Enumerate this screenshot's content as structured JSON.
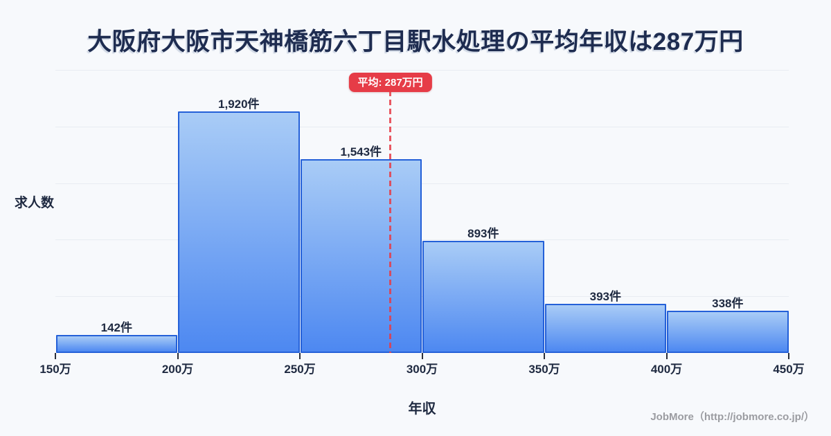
{
  "title": "大阪府大阪市天神橋筋六丁目駅水処理の平均年収は287万円",
  "footer": {
    "credit": "JobMore（http://jobmore.co.jp/）"
  },
  "colors": {
    "background": "#f7f9fc",
    "title_ink": "#1e2c50",
    "label_ink": "#1e2940",
    "grid": "#e8ecf2",
    "bar_border": "#2460d8",
    "bar_gradient_top": "#a9ccf6",
    "bar_gradient_bottom": "#4d88f1",
    "accent_red": "#e63c47",
    "footer_muted": "#9b9ca1"
  },
  "chart_data": {
    "type": "bar",
    "subtype": "histogram",
    "title": "大阪府大阪市天神橋筋六丁目駅水処理の平均年収は287万円",
    "xlabel": "年収",
    "ylabel": "求人数",
    "bin_edges": [
      150,
      200,
      250,
      300,
      350,
      400,
      450
    ],
    "bin_edge_labels": [
      "150万",
      "200万",
      "250万",
      "300万",
      "350万",
      "400万",
      "450万"
    ],
    "values": [
      142,
      1920,
      1543,
      893,
      393,
      338
    ],
    "value_labels": [
      "142件",
      "1,920件",
      "1,543件",
      "893件",
      "393件",
      "338件"
    ],
    "ylim": [
      0,
      2250
    ],
    "gridline_step": 450,
    "grid": "horizontal",
    "legend": "none",
    "average_line": {
      "x": 287,
      "label": "平均: 287万円"
    }
  }
}
